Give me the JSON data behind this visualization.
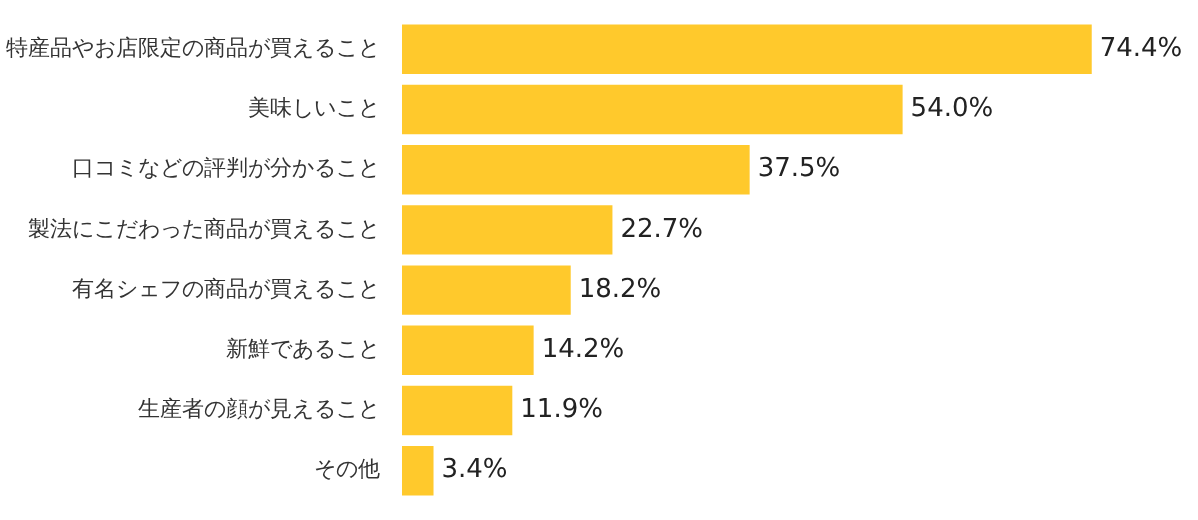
{
  "chart_data": {
    "type": "bar",
    "orientation": "horizontal",
    "tick_labels": "y",
    "categories": [
      "特産品やお店限定の商品が買えること",
      "美味しいこと",
      "口コミなどの評判が分かること",
      "製法にこだわった商品が買えること",
      "有名シェフの商品が買えること",
      "新鮮であること",
      "生産者の顔が見えること",
      "その他"
    ],
    "values": [
      74.4,
      54.0,
      37.5,
      22.7,
      18.2,
      14.2,
      11.9,
      3.4
    ],
    "value_labels": [
      "74.4%",
      "54.0%",
      "37.5%",
      "22.7%",
      "18.2%",
      "14.2%",
      "11.9%",
      "3.4%"
    ],
    "color": "#ffc92c"
  }
}
